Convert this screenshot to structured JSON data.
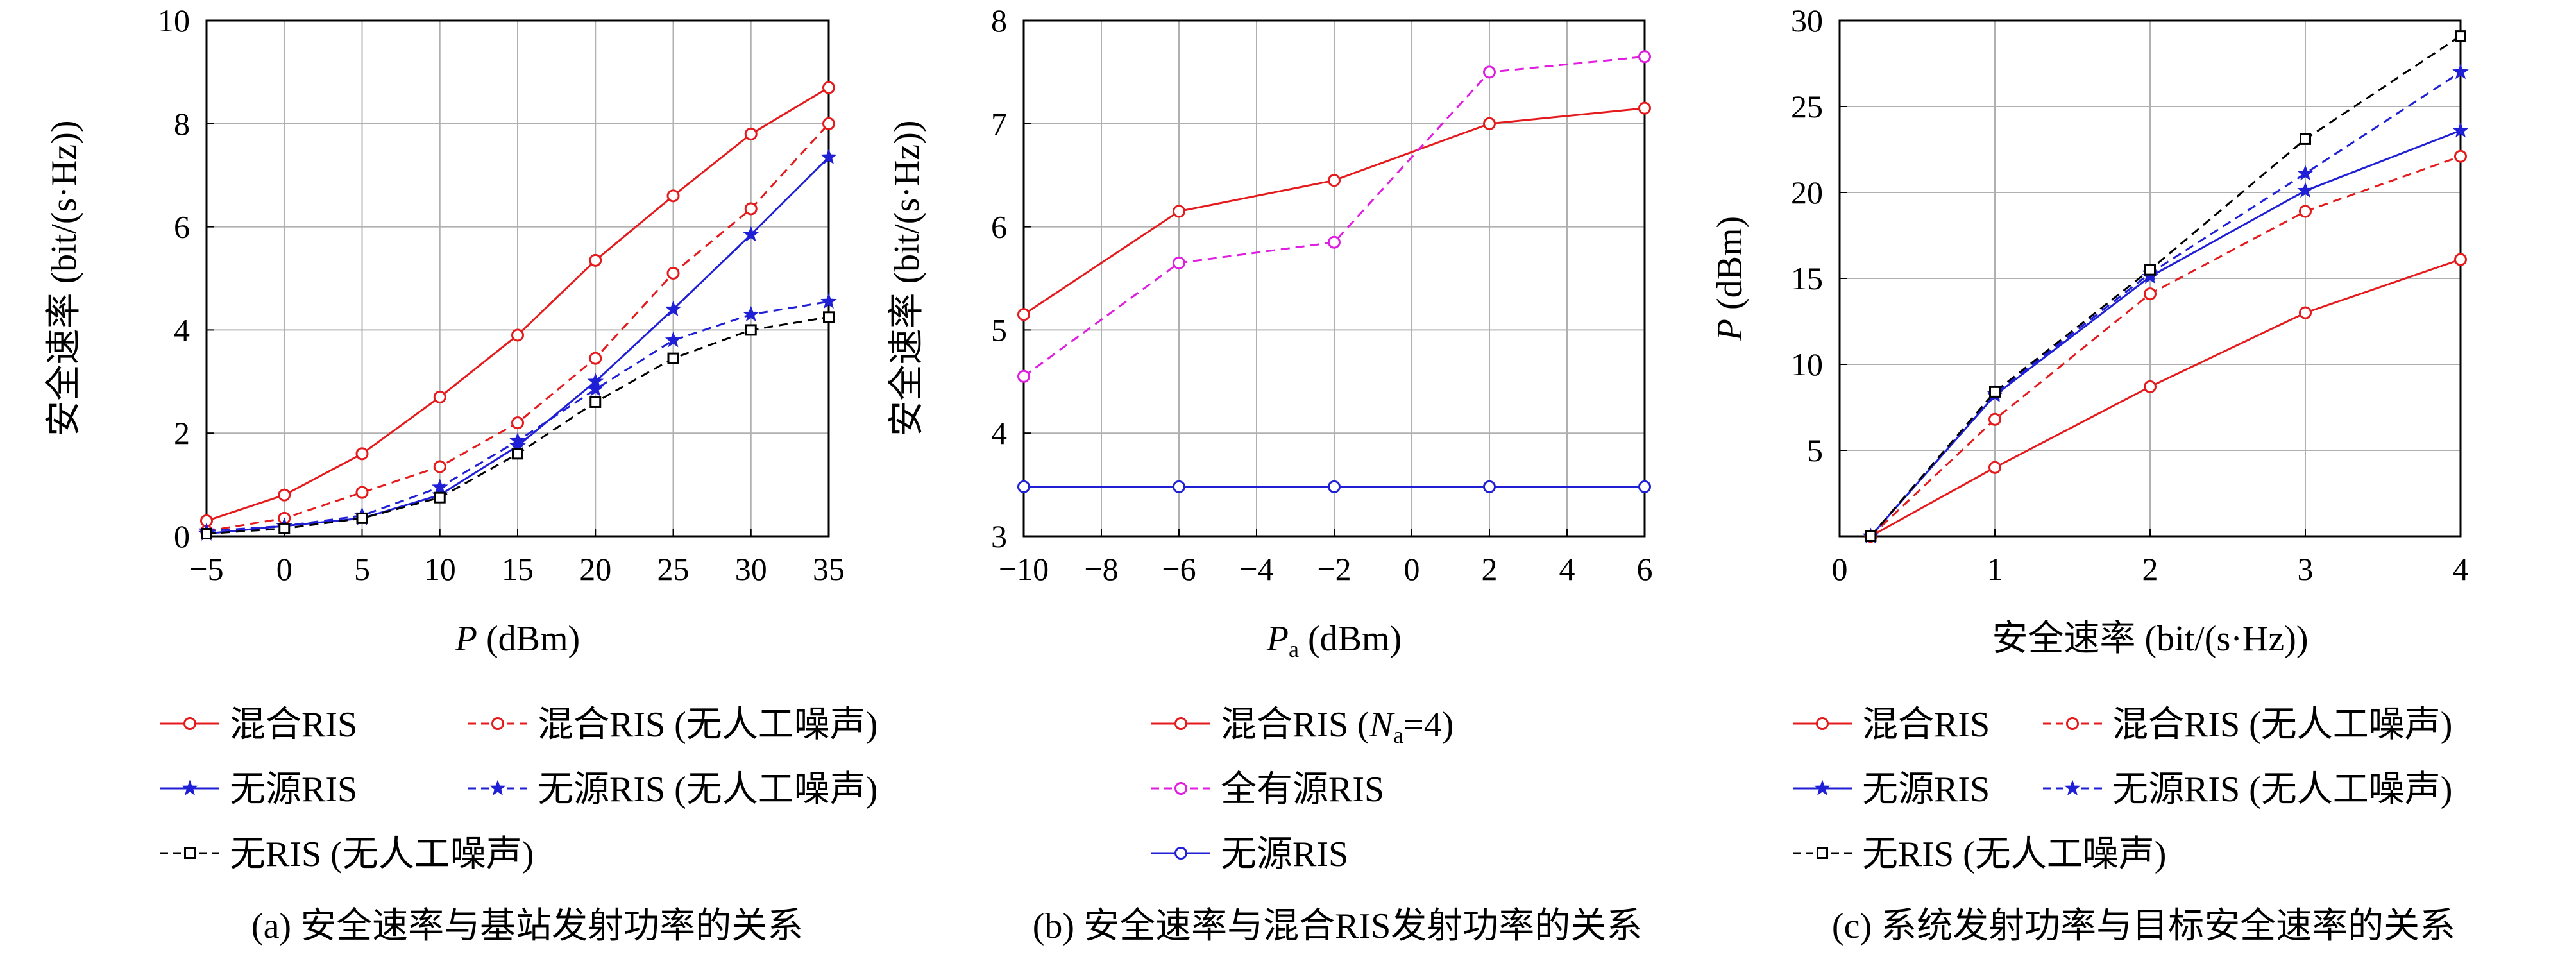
{
  "chart_data": [
    {
      "type": "line",
      "caption": "(a) 安全速率与基站发射功率的关系",
      "xlabel_italic": "P",
      "xlabel_rest": " (dBm)",
      "ylabel": "安全速率 (bit/(s·Hz))",
      "xlim": [
        -5,
        35
      ],
      "ylim": [
        0,
        10
      ],
      "xticks": [
        -5,
        0,
        5,
        10,
        15,
        20,
        25,
        30,
        35
      ],
      "yticks": [
        0,
        2,
        4,
        6,
        8,
        10
      ],
      "grid": true,
      "legend_position": "below",
      "x": [
        -5,
        0,
        5,
        10,
        15,
        20,
        25,
        30,
        35
      ],
      "series": [
        {
          "name": "混合RIS",
          "color": "#e41a1c",
          "dash": false,
          "marker": "circle",
          "values": [
            0.3,
            0.8,
            1.6,
            2.7,
            3.9,
            5.35,
            6.6,
            7.8,
            8.7
          ]
        },
        {
          "name": "混合RIS (无人工噪声)",
          "color": "#e41a1c",
          "dash": true,
          "marker": "circle",
          "values": [
            0.1,
            0.35,
            0.85,
            1.35,
            2.2,
            3.45,
            5.1,
            6.35,
            8.0
          ]
        },
        {
          "name": "无源RIS",
          "color": "#1f1fd6",
          "dash": false,
          "marker": "star",
          "values": [
            0.05,
            0.2,
            0.35,
            0.8,
            1.75,
            3.0,
            4.4,
            5.85,
            7.35
          ]
        },
        {
          "name": "无源RIS (无人工噪声)",
          "color": "#1f1fd6",
          "dash": true,
          "marker": "star",
          "values": [
            0.1,
            0.2,
            0.4,
            0.95,
            1.85,
            2.85,
            3.8,
            4.3,
            4.55
          ]
        },
        {
          "name": "无RIS (无人工噪声)",
          "color": "#000000",
          "dash": true,
          "marker": "square",
          "values": [
            0.05,
            0.15,
            0.35,
            0.75,
            1.6,
            2.6,
            3.45,
            4.0,
            4.25
          ]
        }
      ]
    },
    {
      "type": "line",
      "caption": "(b) 安全速率与混合RIS发射功率的关系",
      "xlabel_italic": "P",
      "xlabel_sub": "a",
      "xlabel_rest": " (dBm)",
      "ylabel": "安全速率 (bit/(s·Hz))",
      "xlim": [
        -10,
        6
      ],
      "ylim": [
        3,
        8
      ],
      "xticks": [
        -10,
        -8,
        -6,
        -4,
        -2,
        0,
        2,
        4,
        6
      ],
      "yticks": [
        3,
        4,
        5,
        6,
        7,
        8
      ],
      "grid": true,
      "legend_position": "below",
      "x": [
        -10,
        -6,
        -2,
        2,
        6
      ],
      "series": [
        {
          "name": "混合RIS (Na=4)",
          "legend_prefix": "混合RIS (",
          "legend_italic": "N",
          "legend_sub": "a",
          "legend_suffix": "=4)",
          "color": "#e41a1c",
          "dash": false,
          "marker": "circle",
          "values": [
            5.15,
            6.15,
            6.45,
            7.0,
            7.15
          ]
        },
        {
          "name": "全有源RIS",
          "color": "#e01ee0",
          "dash": true,
          "marker": "circle",
          "values": [
            4.55,
            5.65,
            5.85,
            7.5,
            7.65
          ]
        },
        {
          "name": "无源RIS",
          "color": "#1f1fd6",
          "dash": false,
          "marker": "circle",
          "values": [
            3.48,
            3.48,
            3.48,
            3.48,
            3.48
          ]
        }
      ]
    },
    {
      "type": "line",
      "caption": "(c) 系统发射功率与目标安全速率的关系",
      "xlabel_rest": "安全速率 (bit/(s·Hz))",
      "ylabel_italic": "P",
      "ylabel_rest": " (dBm)",
      "xlim": [
        0,
        4
      ],
      "ylim": [
        0,
        30
      ],
      "xticks": [
        0,
        1,
        2,
        3,
        4
      ],
      "yticks": [
        5,
        10,
        15,
        20,
        25,
        30
      ],
      "grid": true,
      "legend_position": "below",
      "x": [
        0.2,
        1,
        2,
        3,
        4
      ],
      "series": [
        {
          "name": "混合RIS",
          "color": "#e41a1c",
          "dash": false,
          "marker": "circle",
          "values": [
            0.0,
            4.0,
            8.7,
            13.0,
            16.1
          ]
        },
        {
          "name": "混合RIS (无人工噪声)",
          "color": "#e41a1c",
          "dash": true,
          "marker": "circle",
          "values": [
            0.0,
            6.8,
            14.1,
            18.9,
            22.1
          ]
        },
        {
          "name": "无源RIS",
          "color": "#1f1fd6",
          "dash": false,
          "marker": "star",
          "values": [
            0.0,
            8.2,
            15.1,
            20.1,
            23.6
          ]
        },
        {
          "name": "无源RIS (无人工噪声)",
          "color": "#1f1fd6",
          "dash": true,
          "marker": "star",
          "values": [
            0.0,
            8.3,
            15.3,
            21.1,
            27.0
          ]
        },
        {
          "name": "无RIS (无人工噪声)",
          "color": "#000000",
          "dash": true,
          "marker": "square",
          "values": [
            0.0,
            8.4,
            15.5,
            23.1,
            29.1
          ]
        }
      ]
    }
  ]
}
